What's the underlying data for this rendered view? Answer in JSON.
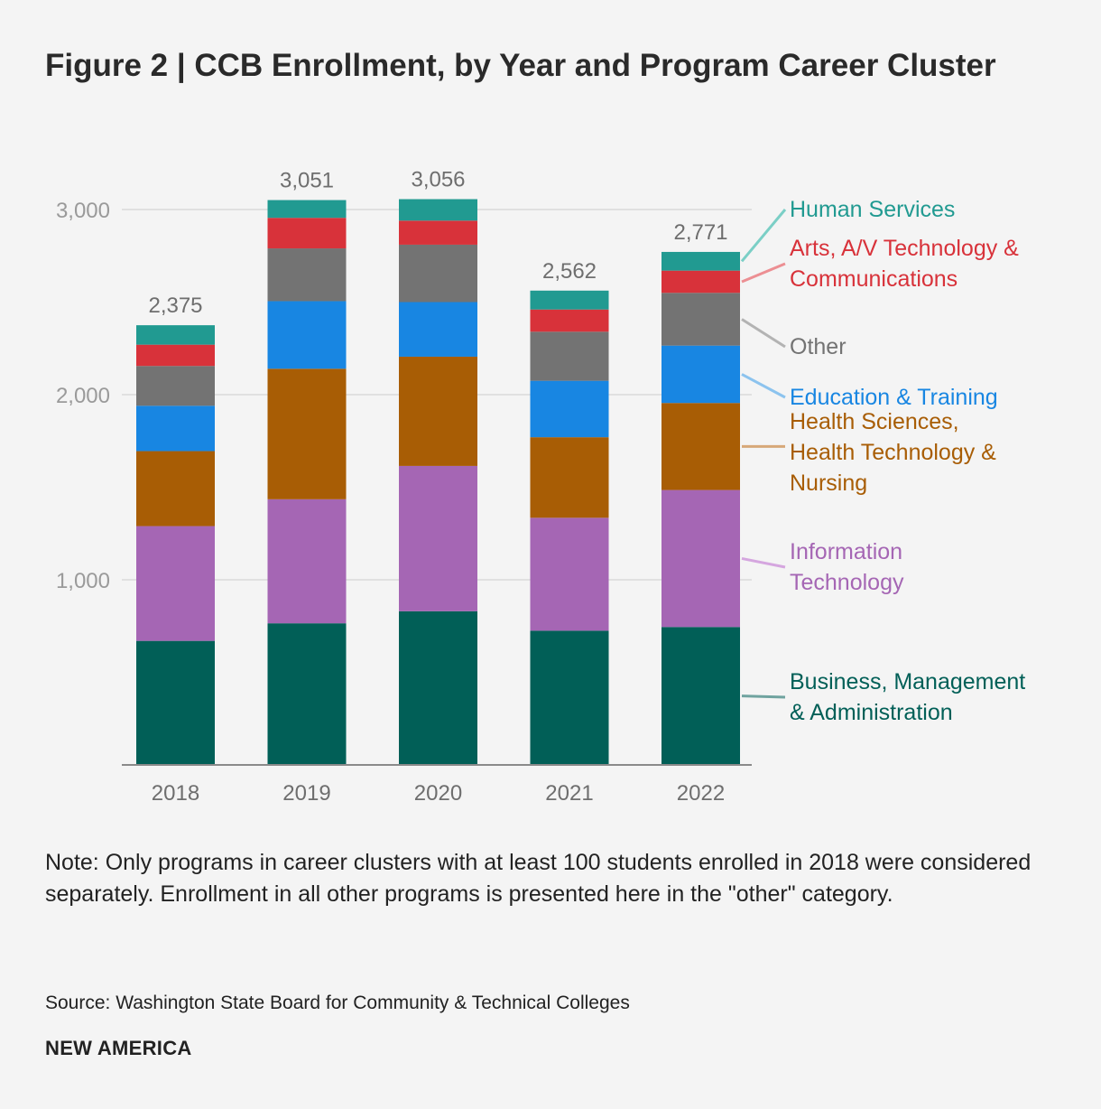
{
  "title": "Figure 2 | CCB Enrollment, by Year and Program Career Cluster",
  "note": "Note: Only programs in career clusters with at least 100 students enrolled in 2018 were considered separately. Enrollment in all other programs is presented here in the \"other\" category.",
  "source": "Source: Washington State Board for Community & Technical Colleges",
  "brand": "NEW AMERICA",
  "chart_data": {
    "type": "bar",
    "stacked": true,
    "title": "Figure 2 | CCB Enrollment, by Year and Program Career Cluster",
    "xlabel": "",
    "ylabel": "",
    "ylim": [
      0,
      3000
    ],
    "yticks": [
      1000,
      2000,
      3000
    ],
    "ytick_labels": [
      "1,000",
      "2,000",
      "3,000"
    ],
    "grid": true,
    "categories": [
      "2018",
      "2019",
      "2020",
      "2021",
      "2022"
    ],
    "totals": [
      2375,
      3051,
      3056,
      2562,
      2771
    ],
    "total_labels": [
      "2,375",
      "3,051",
      "3,056",
      "2,562",
      "2,771"
    ],
    "series": [
      {
        "name": "Business, Management & Administration",
        "label_lines": [
          "Business, Management",
          "& Administration"
        ],
        "color": "#015f57",
        "values": [
          670,
          765,
          830,
          725,
          745
        ]
      },
      {
        "name": "Information Technology",
        "label_lines": [
          "Information",
          "Technology"
        ],
        "color": "#a566b4",
        "values": [
          620,
          670,
          785,
          610,
          740
        ]
      },
      {
        "name": "Health Sciences, Health Technology & Nursing",
        "label_lines": [
          "Health Sciences,",
          "Health Technology &",
          "Nursing"
        ],
        "color": "#a85d05",
        "values": [
          405,
          705,
          590,
          435,
          470
        ]
      },
      {
        "name": "Education & Training",
        "label_lines": [
          "Education & Training"
        ],
        "color": "#1886e2",
        "values": [
          245,
          365,
          295,
          305,
          310
        ]
      },
      {
        "name": "Other",
        "label_lines": [
          "Other"
        ],
        "color": "#737373",
        "values": [
          215,
          285,
          310,
          265,
          285
        ]
      },
      {
        "name": "Arts, A/V Technology & Communications",
        "label_lines": [
          "Arts, A/V Technology &",
          "Communications"
        ],
        "color": "#d8323a",
        "values": [
          115,
          165,
          130,
          120,
          120
        ]
      },
      {
        "name": "Human Services",
        "label_lines": [
          "Human Services"
        ],
        "color": "#219a91",
        "values": [
          105,
          96,
          116,
          102,
          101
        ]
      }
    ],
    "legend_text_colors": [
      "#015f57",
      "#a566b4",
      "#a85d05",
      "#1886e2",
      "#737373",
      "#d8323a",
      "#219a91"
    ],
    "legend_line_colors": [
      "#6fa39f",
      "#d5a6df",
      "#d7a878",
      "#8cc3ee",
      "#b3b3b3",
      "#ec8f93",
      "#7bcfc6"
    ]
  }
}
